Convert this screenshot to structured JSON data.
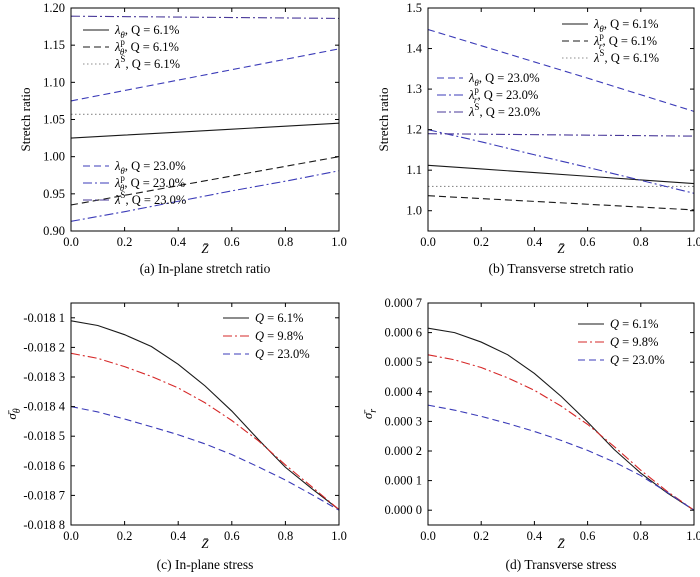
{
  "colors": {
    "black": "#1a1a1a",
    "red": "#d62828",
    "blue": "#3b3bb8",
    "purple": "#4a3a9a",
    "gray": "#8c8c8c"
  },
  "chart_data": [
    {
      "id": "a",
      "type": "line",
      "caption": "(a) In-plane stretch ratio",
      "xlabel": "Z̄",
      "ylabel": "Stretch ratio",
      "xlim": [
        0,
        1
      ],
      "ylim": [
        0.9,
        1.2
      ],
      "xticks": [
        "0.0",
        "0.2",
        "0.4",
        "0.6",
        "0.8",
        "1.0"
      ],
      "yticks": [
        "0.90",
        "0.95",
        "1.00",
        "1.05",
        "1.10",
        "1.15",
        "1.20"
      ],
      "legend": [
        {
          "sym": "λ",
          "sub": "θ",
          "sup": "",
          "rest": ", Q = 6.1%",
          "style": "solid",
          "color": "#1a1a1a",
          "pos": "upper"
        },
        {
          "sym": "λ",
          "sub": "θ",
          "sup": "p",
          "rest": ", Q = 6.1%",
          "style": "dash",
          "color": "#1a1a1a",
          "pos": "upper"
        },
        {
          "sym": "λ",
          "sub": "",
          "sup": "S",
          "rest": ", Q = 6.1%",
          "style": "dot",
          "color": "#8c8c8c",
          "pos": "upper"
        },
        {
          "sym": "λ",
          "sub": "θ",
          "sup": "",
          "rest": ", Q = 23.0%",
          "style": "dash",
          "color": "#3b3bb8",
          "pos": "lower"
        },
        {
          "sym": "λ",
          "sub": "θ",
          "sup": "p",
          "rest": ", Q = 23.0%",
          "style": "dashdot",
          "color": "#3b3bb8",
          "pos": "lower"
        },
        {
          "sym": "λ",
          "sub": "",
          "sup": "S",
          "rest": ", Q = 23.0%",
          "style": "dashdot",
          "color": "#4a3a9a",
          "pos": "lower"
        }
      ],
      "series": [
        {
          "style": "solid",
          "color": "#1a1a1a",
          "x": [
            0,
            0.2,
            0.4,
            0.6,
            0.8,
            1.0
          ],
          "y": [
            1.025,
            1.029,
            1.033,
            1.037,
            1.041,
            1.045
          ]
        },
        {
          "style": "dash",
          "color": "#1a1a1a",
          "x": [
            0,
            0.2,
            0.4,
            0.6,
            0.8,
            1.0
          ],
          "y": [
            0.935,
            0.948,
            0.961,
            0.974,
            0.987,
            1.0
          ]
        },
        {
          "style": "dot",
          "color": "#8c8c8c",
          "x": [
            0,
            1.0
          ],
          "y": [
            1.057,
            1.057
          ]
        },
        {
          "style": "dash",
          "color": "#3b3bb8",
          "x": [
            0,
            0.2,
            0.4,
            0.6,
            0.8,
            1.0
          ],
          "y": [
            1.075,
            1.089,
            1.103,
            1.117,
            1.131,
            1.145
          ]
        },
        {
          "style": "dashdot",
          "color": "#3b3bb8",
          "x": [
            0,
            0.2,
            0.4,
            0.6,
            0.8,
            1.0
          ],
          "y": [
            0.913,
            0.926,
            0.94,
            0.954,
            0.967,
            0.981
          ]
        },
        {
          "style": "dashdot",
          "color": "#4a3a9a",
          "x": [
            0,
            1.0
          ],
          "y": [
            1.189,
            1.186
          ]
        }
      ]
    },
    {
      "id": "b",
      "type": "line",
      "caption": "(b) Transverse stretch ratio",
      "xlabel": "Z̄",
      "ylabel": "Stretch ratio",
      "xlim": [
        0,
        1
      ],
      "ylim": [
        0.95,
        1.5
      ],
      "xticks": [
        "0.0",
        "0.2",
        "0.4",
        "0.6",
        "0.8",
        "1.0"
      ],
      "yticks": [
        "1.0",
        "1.1",
        "1.2",
        "1.3",
        "1.4",
        "1.5"
      ],
      "legend": [
        {
          "sym": "λ",
          "sub": "θ",
          "sup": "",
          "rest": ", Q = 6.1%",
          "style": "solid",
          "color": "#1a1a1a",
          "pos": "upper"
        },
        {
          "sym": "λ",
          "sub": "r",
          "sup": "p",
          "rest": ", Q = 6.1%",
          "style": "dash",
          "color": "#1a1a1a",
          "pos": "upper"
        },
        {
          "sym": "λ",
          "sub": "",
          "sup": "S",
          "rest": ", Q = 6.1%",
          "style": "dot",
          "color": "#8c8c8c",
          "pos": "upper"
        },
        {
          "sym": "λ",
          "sub": "θ",
          "sup": "",
          "rest": ", Q = 23.0%",
          "style": "dash",
          "color": "#3b3bb8",
          "pos": "lower"
        },
        {
          "sym": "λ",
          "sub": "r",
          "sup": "p",
          "rest": ", Q = 23.0%",
          "style": "dashdot",
          "color": "#3b3bb8",
          "pos": "lower"
        },
        {
          "sym": "λ",
          "sub": "",
          "sup": "S",
          "rest": ", Q = 23.0%",
          "style": "dashdot",
          "color": "#4a3a9a",
          "pos": "lower"
        }
      ],
      "series": [
        {
          "style": "solid",
          "color": "#1a1a1a",
          "x": [
            0,
            0.2,
            0.4,
            0.6,
            0.8,
            1.0
          ],
          "y": [
            1.112,
            1.103,
            1.094,
            1.085,
            1.076,
            1.067
          ]
        },
        {
          "style": "dash",
          "color": "#1a1a1a",
          "x": [
            0,
            0.2,
            0.4,
            0.6,
            0.8,
            1.0
          ],
          "y": [
            1.037,
            1.03,
            1.023,
            1.016,
            1.009,
            1.002
          ]
        },
        {
          "style": "dot",
          "color": "#8c8c8c",
          "x": [
            0,
            1.0
          ],
          "y": [
            1.06,
            1.06
          ]
        },
        {
          "style": "dash",
          "color": "#3b3bb8",
          "x": [
            0,
            0.2,
            0.4,
            0.6,
            0.8,
            1.0
          ],
          "y": [
            1.447,
            1.407,
            1.367,
            1.327,
            1.286,
            1.245
          ]
        },
        {
          "style": "dashdot",
          "color": "#3b3bb8",
          "x": [
            0,
            0.2,
            0.4,
            0.6,
            0.8,
            1.0
          ],
          "y": [
            1.2,
            1.17,
            1.138,
            1.107,
            1.075,
            1.043
          ]
        },
        {
          "style": "dashdot",
          "color": "#4a3a9a",
          "x": [
            0,
            1.0
          ],
          "y": [
            1.19,
            1.184
          ]
        }
      ]
    },
    {
      "id": "c",
      "type": "line",
      "caption": "(c) In-plane stress",
      "xlabel": "Z̄",
      "ylabel_sym": "σ̄",
      "ylabel_sub": "θ",
      "xlim": [
        0,
        1
      ],
      "ylim": [
        -0.0188,
        -0.01805
      ],
      "xticks": [
        "0.0",
        "0.2",
        "0.4",
        "0.6",
        "0.8",
        "1.0"
      ],
      "yticks": [
        "-0.018 8",
        "-0.018 7",
        "-0.018 6",
        "-0.018 5",
        "-0.018 4",
        "-0.018 3",
        "-0.018 2",
        "-0.018 1"
      ],
      "legend": [
        {
          "sym": "Q",
          "sub": "",
          "sup": "",
          "rest": " = 6.1%",
          "style": "solid",
          "color": "#1a1a1a",
          "pos": "upper"
        },
        {
          "sym": "Q",
          "sub": "",
          "sup": "",
          "rest": " = 9.8%",
          "style": "dashdot",
          "color": "#d62828",
          "pos": "upper"
        },
        {
          "sym": "Q",
          "sub": "",
          "sup": "",
          "rest": " = 23.0%",
          "style": "dash",
          "color": "#3b3bb8",
          "pos": "upper"
        }
      ],
      "series": [
        {
          "name": "Q = 6.1%",
          "style": "solid",
          "color": "#1a1a1a",
          "x": [
            0,
            0.1,
            0.2,
            0.3,
            0.4,
            0.5,
            0.6,
            0.7,
            0.8,
            0.9,
            1.0
          ],
          "y": [
            -0.01811,
            -0.018126,
            -0.018157,
            -0.018197,
            -0.018257,
            -0.01833,
            -0.018415,
            -0.018512,
            -0.018605,
            -0.018678,
            -0.018748
          ]
        },
        {
          "name": "Q = 9.8%",
          "style": "dashdot",
          "color": "#d62828",
          "x": [
            0,
            0.1,
            0.2,
            0.3,
            0.4,
            0.5,
            0.6,
            0.7,
            0.8,
            0.9,
            1.0
          ],
          "y": [
            -0.01822,
            -0.018237,
            -0.018265,
            -0.018298,
            -0.018337,
            -0.018387,
            -0.018447,
            -0.018516,
            -0.018597,
            -0.018672,
            -0.018748
          ]
        },
        {
          "name": "Q = 23.0%",
          "style": "dash",
          "color": "#3b3bb8",
          "x": [
            0,
            0.1,
            0.2,
            0.3,
            0.4,
            0.5,
            0.6,
            0.7,
            0.8,
            0.9,
            1.0
          ],
          "y": [
            -0.0184,
            -0.018418,
            -0.018442,
            -0.018468,
            -0.018495,
            -0.018526,
            -0.018562,
            -0.018604,
            -0.018648,
            -0.018698,
            -0.01875
          ]
        }
      ]
    },
    {
      "id": "d",
      "type": "line",
      "caption": "(d) Transverse stress",
      "xlabel": "Z̄",
      "ylabel_sym": "σ̄",
      "ylabel_sub": "r",
      "xlim": [
        0,
        1
      ],
      "ylim": [
        -5e-05,
        0.0007
      ],
      "xticks": [
        "0.0",
        "0.2",
        "0.4",
        "0.6",
        "0.8",
        "1.0"
      ],
      "yticks": [
        "0.000 0",
        "0.000 1",
        "0.000 2",
        "0.000 3",
        "0.000 4",
        "0.000 5",
        "0.000 6",
        "0.000 7"
      ],
      "legend": [
        {
          "sym": "Q",
          "sub": "",
          "sup": "",
          "rest": " = 6.1%",
          "style": "solid",
          "color": "#1a1a1a",
          "pos": "upper"
        },
        {
          "sym": "Q",
          "sub": "",
          "sup": "",
          "rest": " = 9.8%",
          "style": "dashdot",
          "color": "#d62828",
          "pos": "upper"
        },
        {
          "sym": "Q",
          "sub": "",
          "sup": "",
          "rest": " = 23.0%",
          "style": "dash",
          "color": "#3b3bb8",
          "pos": "upper"
        }
      ],
      "series": [
        {
          "name": "Q = 6.1%",
          "style": "solid",
          "color": "#1a1a1a",
          "x": [
            0,
            0.1,
            0.2,
            0.3,
            0.4,
            0.5,
            0.6,
            0.7,
            0.8,
            0.9,
            1.0
          ],
          "y": [
            0.000615,
            0.0006,
            0.000568,
            0.000525,
            0.000462,
            0.000385,
            0.000298,
            0.000205,
            0.000125,
            5.8e-05,
            0.0
          ]
        },
        {
          "name": "Q = 9.8%",
          "style": "dashdot",
          "color": "#d62828",
          "x": [
            0,
            0.1,
            0.2,
            0.3,
            0.4,
            0.5,
            0.6,
            0.7,
            0.8,
            0.9,
            1.0
          ],
          "y": [
            0.000525,
            0.000508,
            0.000482,
            0.000447,
            0.000405,
            0.000352,
            0.00029,
            0.000215,
            0.000135,
            6.3e-05,
            0.0
          ]
        },
        {
          "name": "Q = 23.0%",
          "style": "dash",
          "color": "#3b3bb8",
          "x": [
            0,
            0.1,
            0.2,
            0.3,
            0.4,
            0.5,
            0.6,
            0.7,
            0.8,
            0.9,
            1.0
          ],
          "y": [
            0.000355,
            0.000338,
            0.000317,
            0.000293,
            0.000266,
            0.000236,
            0.000202,
            0.000163,
            0.000117,
            6e-05,
            0.0
          ]
        }
      ]
    }
  ]
}
